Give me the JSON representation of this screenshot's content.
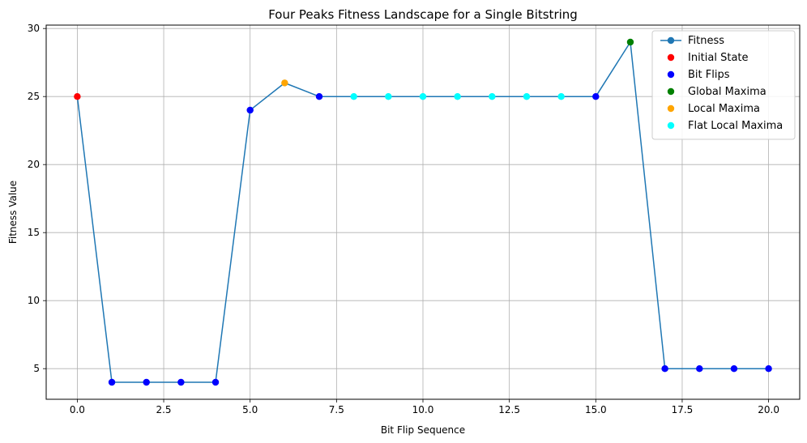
{
  "chart_data": {
    "type": "line",
    "title": "Four Peaks Fitness Landscape for a Single Bitstring",
    "xlabel": "Bit Flip Sequence",
    "ylabel": "Fitness Value",
    "xlim": [
      -0.9,
      20.9
    ],
    "ylim": [
      2.75,
      30.25
    ],
    "xticks": [
      0.0,
      2.5,
      5.0,
      7.5,
      10.0,
      12.5,
      15.0,
      17.5,
      20.0
    ],
    "xtick_labels": [
      "0.0",
      "2.5",
      "5.0",
      "7.5",
      "10.0",
      "12.5",
      "15.0",
      "17.5",
      "20.0"
    ],
    "yticks": [
      5,
      10,
      15,
      20,
      25,
      30
    ],
    "ytick_labels": [
      "5",
      "10",
      "15",
      "20",
      "25",
      "30"
    ],
    "grid": true,
    "legend_position": "top-right",
    "line_series": {
      "name": "Fitness",
      "color": "#1f77b4",
      "x": [
        0,
        1,
        2,
        3,
        4,
        5,
        6,
        7,
        8,
        9,
        10,
        11,
        12,
        13,
        14,
        15,
        16,
        17,
        18,
        19,
        20
      ],
      "y": [
        25,
        4,
        4,
        4,
        4,
        24,
        26,
        25,
        25,
        25,
        25,
        25,
        25,
        25,
        25,
        25,
        29,
        5,
        5,
        5,
        5
      ]
    },
    "scatter_series": [
      {
        "name": "Initial State",
        "color": "#ff0000",
        "x": [
          0
        ],
        "y": [
          25
        ]
      },
      {
        "name": "Bit Flips",
        "color": "#0000ff",
        "x": [
          1,
          2,
          3,
          4,
          5,
          7,
          15,
          17,
          18,
          19,
          20
        ],
        "y": [
          4,
          4,
          4,
          4,
          24,
          25,
          25,
          5,
          5,
          5,
          5
        ]
      },
      {
        "name": "Global Maxima",
        "color": "#008000",
        "x": [
          16
        ],
        "y": [
          29
        ]
      },
      {
        "name": "Local Maxima",
        "color": "#ffa500",
        "x": [
          6
        ],
        "y": [
          26
        ]
      },
      {
        "name": "Flat Local Maxima",
        "color": "#00ffff",
        "x": [
          8,
          9,
          10,
          11,
          12,
          13,
          14
        ],
        "y": [
          25,
          25,
          25,
          25,
          25,
          25,
          25
        ]
      }
    ]
  }
}
